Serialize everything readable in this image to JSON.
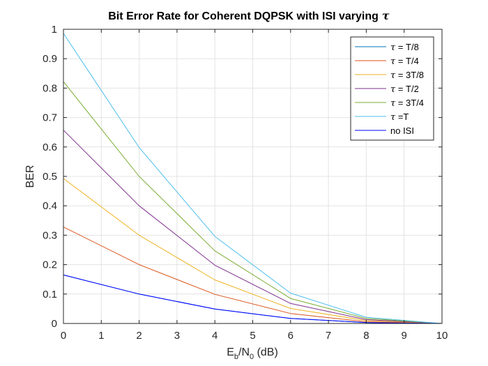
{
  "chart_data": {
    "type": "line",
    "title": "Bit Error Rate for Coherent DQPSK with ISI varying",
    "title_symbol": "τ",
    "xlabel": {
      "base": "E",
      "sub1": "b",
      "mid": "/N",
      "sub2": "0",
      "tail": " (dB)"
    },
    "ylabel": "BER",
    "xlim": [
      0,
      10
    ],
    "ylim": [
      0,
      1
    ],
    "xticks": [
      "0",
      "1",
      "2",
      "3",
      "4",
      "5",
      "6",
      "7",
      "8",
      "9",
      "10"
    ],
    "yticks": [
      "0",
      "0.1",
      "0.2",
      "0.3",
      "0.4",
      "0.5",
      "0.6",
      "0.7",
      "0.8",
      "0.9",
      "1"
    ],
    "grid": true,
    "legend_position": "top-right",
    "x": [
      0,
      2,
      4,
      6,
      8,
      10
    ],
    "series": [
      {
        "name": "τ = T/8",
        "symbol": "τ",
        "label": " = T/8",
        "color": "#0072BD",
        "values": [
          0.165,
          0.1,
          0.049,
          0.017,
          0.003,
          0.0
        ]
      },
      {
        "name": "τ = T/4",
        "symbol": "τ",
        "label": " = T/4",
        "color": "#D95319",
        "values": [
          0.328,
          0.2,
          0.099,
          0.034,
          0.006,
          0.0
        ]
      },
      {
        "name": "τ = 3T/8",
        "symbol": "τ",
        "label": " = 3T/8",
        "color": "#EDB120",
        "values": [
          0.493,
          0.3,
          0.148,
          0.051,
          0.01,
          0.0
        ]
      },
      {
        "name": "τ = T/2",
        "symbol": "τ",
        "label": " = T/2",
        "color": "#7E2F8E",
        "values": [
          0.657,
          0.4,
          0.198,
          0.068,
          0.013,
          0.0
        ]
      },
      {
        "name": "τ = 3T/4",
        "symbol": "τ",
        "label": " = 3T/4",
        "color": "#77AC30",
        "values": [
          0.822,
          0.5,
          0.247,
          0.085,
          0.017,
          0.0
        ]
      },
      {
        "name": "τ =T",
        "symbol": "τ",
        "label": " =T",
        "color": "#4DBEEE",
        "values": [
          0.986,
          0.598,
          0.296,
          0.103,
          0.021,
          0.0
        ]
      },
      {
        "name": "no ISI",
        "symbol": "",
        "label": "no ISI",
        "color": "#0000FF",
        "values": [
          0.165,
          0.1,
          0.049,
          0.017,
          0.003,
          0.0
        ]
      }
    ]
  }
}
